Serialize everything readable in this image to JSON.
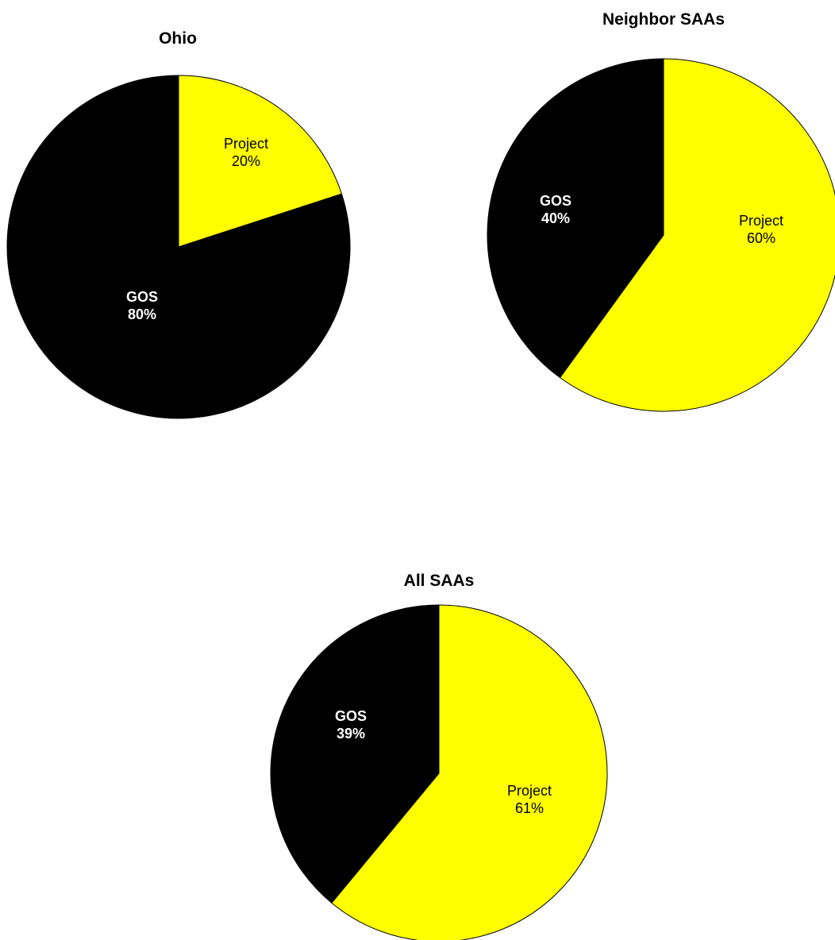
{
  "chart_data": [
    {
      "type": "pie",
      "title": "Ohio",
      "slices": [
        {
          "label": "Project",
          "value": 20,
          "display": "20%",
          "color": "#FFFF00",
          "text_color": "#000000",
          "bold": false
        },
        {
          "label": "GOS",
          "value": 80,
          "display": "80%",
          "color": "#000000",
          "text_color": "#FFFFFF",
          "bold": true
        }
      ]
    },
    {
      "type": "pie",
      "title": "Neighbor SAAs",
      "slices": [
        {
          "label": "Project",
          "value": 60,
          "display": "60%",
          "color": "#FFFF00",
          "text_color": "#000000",
          "bold": false
        },
        {
          "label": "GOS",
          "value": 40,
          "display": "40%",
          "color": "#000000",
          "text_color": "#FFFFFF",
          "bold": true
        }
      ]
    },
    {
      "type": "pie",
      "title": "All SAAs",
      "slices": [
        {
          "label": "Project",
          "value": 61,
          "display": "61%",
          "color": "#FFFF00",
          "text_color": "#000000",
          "bold": false
        },
        {
          "label": "GOS",
          "value": 39,
          "display": "39%",
          "color": "#000000",
          "text_color": "#FFFFFF",
          "bold": true
        }
      ]
    }
  ]
}
